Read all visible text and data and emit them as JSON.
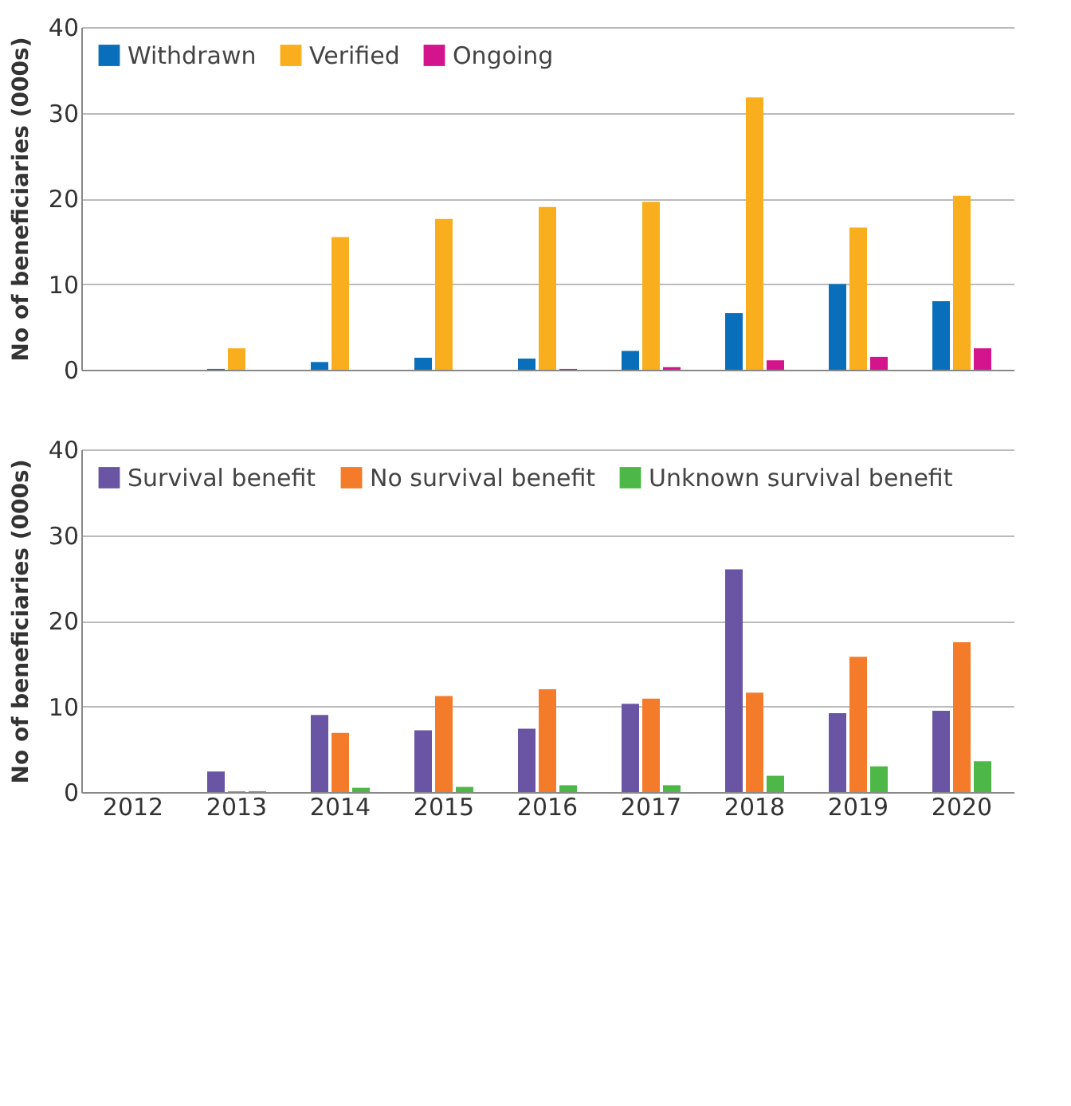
{
  "chart_data": [
    {
      "type": "bar",
      "categories": [
        "2012",
        "2013",
        "2014",
        "2015",
        "2016",
        "2017",
        "2018",
        "2019",
        "2020"
      ],
      "ylabel": "No of beneficiaries (000s)",
      "ylim": [
        0,
        40
      ],
      "yticks": [
        0,
        10,
        20,
        30,
        40
      ],
      "grid": "y",
      "legend": "top left",
      "tick_labels": "y",
      "series": [
        {
          "name": "Withdrawn",
          "color": "#0a6fba",
          "values": [
            0,
            0.1,
            0.9,
            1.4,
            1.3,
            2.2,
            6.6,
            10.0,
            8.0
          ]
        },
        {
          "name": "Verified",
          "color": "#f9ae1d",
          "values": [
            0,
            2.5,
            15.5,
            17.6,
            19.0,
            19.6,
            31.8,
            16.6,
            20.3
          ]
        },
        {
          "name": "Ongoing",
          "color": "#d4148c",
          "values": [
            0,
            0,
            0,
            0,
            0.1,
            0.3,
            1.1,
            1.5,
            2.5
          ]
        }
      ]
    },
    {
      "type": "bar",
      "categories": [
        "2012",
        "2013",
        "2014",
        "2015",
        "2016",
        "2017",
        "2018",
        "2019",
        "2020"
      ],
      "ylabel": "No of beneficiaries (000s)",
      "ylim": [
        0,
        40
      ],
      "yticks": [
        0,
        10,
        20,
        30,
        40
      ],
      "grid": "y",
      "legend": "top left",
      "series": [
        {
          "name": "Survival benefit",
          "color": "#6a55a5",
          "values": [
            0,
            2.4,
            9.0,
            7.2,
            7.4,
            10.3,
            26.0,
            9.2,
            9.5
          ]
        },
        {
          "name": "No survival benefit",
          "color": "#f47b2a",
          "values": [
            0,
            0.1,
            6.9,
            11.2,
            12.0,
            10.9,
            11.6,
            15.8,
            17.5
          ]
        },
        {
          "name": "Unknown survival benefit",
          "color": "#4db848",
          "values": [
            0,
            0.1,
            0.5,
            0.6,
            0.8,
            0.8,
            1.9,
            3.0,
            3.6
          ]
        }
      ]
    }
  ]
}
